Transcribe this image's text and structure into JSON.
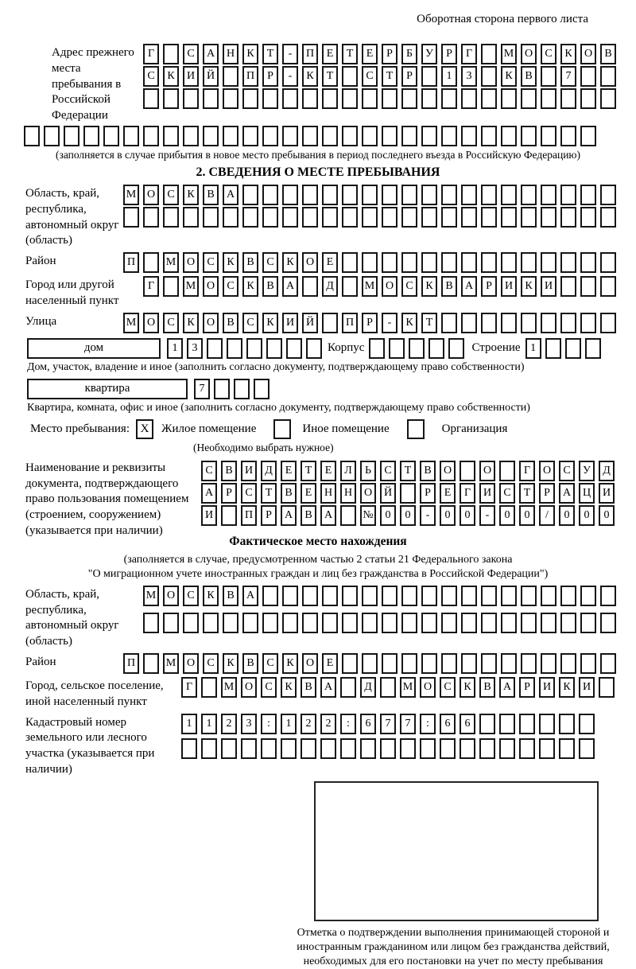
{
  "page": {
    "header_note": "Оборотная сторона первого листа"
  },
  "prev_address": {
    "label": "Адрес прежнего места пребывания в Российской Федерации",
    "row1": "Г САНКТ-ПЕТЕРБУРГ МОСКОВ",
    "row2": "СКИЙ ПР-КТ СТР 13 КВ 7",
    "row3": "",
    "full_row": "",
    "caption": "(заполняется в случае прибытия в новое место пребывания в период последнего въезда в Российскую Федерацию)"
  },
  "section2": {
    "title": "2. СВЕДЕНИЯ О МЕСТЕ ПРЕБЫВАНИЯ",
    "region": {
      "label": "Область, край, республика, автономный округ (область)",
      "row1": "МОСКВА",
      "row2": ""
    },
    "district": {
      "label": "Район",
      "row": "П МОСКВСКОЕ"
    },
    "city": {
      "label": "Город или другой населенный пункт",
      "row": "Г МОСКВА Д МОСКВАРИКИ"
    },
    "street": {
      "label": "Улица",
      "row": "МОСКОВСКИЙ ПР-КТ"
    },
    "house": {
      "box_label": "дом",
      "cells": "13",
      "korpus_label": "Корпус",
      "korpus_cells": "",
      "stroenie_label": "Строение",
      "stroenie_cells": "1"
    },
    "house_caption": "Дом, участок, владение и иное (заполнить согласно документу, подтверждающему право собственности)",
    "apartment": {
      "box_label": "квартира",
      "cells": "7"
    },
    "apartment_caption": "Квартира, комната, офис и иное (заполнить согласно документу, подтверждающему право собственности)",
    "stay": {
      "label": "Место пребывания:",
      "options": [
        {
          "label": "Жилое помещение",
          "mark": "X"
        },
        {
          "label": "Иное помещение",
          "mark": ""
        },
        {
          "label": "Организация",
          "mark": ""
        }
      ],
      "note": "(Необходимо выбрать нужное)"
    },
    "document": {
      "label": "Наименование и реквизиты документа, подтверждающего право пользования помещением (строением, сооружением) (указывается при наличии)",
      "row1": "СВИДЕТЕЛЬСТВО О ГОСУД",
      "row2": "АРСТВЕННОЙ РЕГИСТРАЦИ",
      "row3": "И ПРАВА №00-00-00/000"
    }
  },
  "actual_location": {
    "title": "Фактическое место нахождения",
    "caption_line1": "(заполняется в случае, предусмотренном частью 2 статьи 21 Федерального закона",
    "caption_line2": "\"О миграционном учете иностранных граждан и лиц без гражданства в Российской Федерации\")",
    "region": {
      "label": "Область, край, республика, автономный округ (область)",
      "row1": "МОСКВА",
      "row2": ""
    },
    "district": {
      "label": "Район",
      "row": "П МОСКВСКОЕ"
    },
    "city": {
      "label": "Город, сельское поселение, иной населенный пункт",
      "row": "Г МОСКВА Д МОСКВАРИКИ"
    },
    "cadastral": {
      "label": "Кадастровый номер земельного или лесного участка (указывается при наличии)",
      "row1": "1123:122:677:66",
      "row2": ""
    },
    "stamp_caption": "Отметка о подтверждении выполнения принимающей стороной и иностранным гражданином или лицом без гражданства действий, необходимых для его постановки на учет по месту пребывания"
  }
}
